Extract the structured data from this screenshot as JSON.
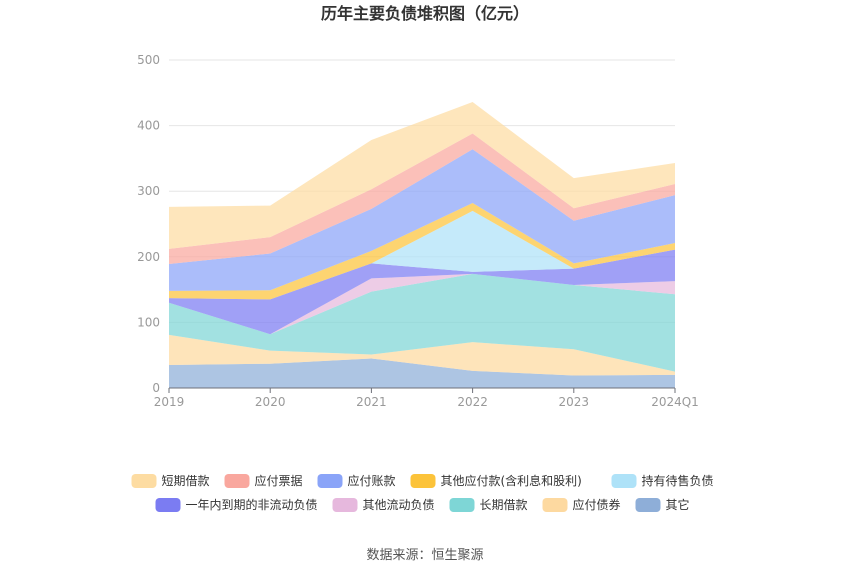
{
  "chart_data": {
    "type": "area",
    "stacked": true,
    "title": "历年主要负债堆积图（亿元）",
    "categories": [
      "2019",
      "2020",
      "2021",
      "2022",
      "2023",
      "2024Q1"
    ],
    "ylim": [
      0,
      500
    ],
    "yticks": [
      "0",
      "100",
      "200",
      "300",
      "400",
      "500"
    ],
    "grid": true,
    "legend_position": "bottom",
    "series": [
      {
        "name": "其它",
        "color": "#8eaed8",
        "values": [
          35,
          37,
          45,
          26,
          19,
          20
        ]
      },
      {
        "name": "应付债券",
        "color": "#fdd9a0",
        "values": [
          46,
          20,
          6,
          44,
          40,
          5
        ]
      },
      {
        "name": "长期借款",
        "color": "#7ed6d6",
        "values": [
          49,
          25,
          96,
          104,
          98,
          118
        ]
      },
      {
        "name": "其他流动负债",
        "color": "#e6b8dd",
        "values": [
          0,
          0,
          20,
          0,
          0,
          20
        ]
      },
      {
        "name": "一年内到期的非流动负债",
        "color": "#7b7cf2",
        "values": [
          7,
          53,
          23,
          3,
          25,
          48
        ]
      },
      {
        "name": "持有待售负债",
        "color": "#aee2f8",
        "values": [
          0,
          0,
          0,
          93,
          0,
          0
        ]
      },
      {
        "name": "其他应付款(含利息和股利)",
        "color": "#fcc33a",
        "values": [
          11,
          14,
          19,
          12,
          8,
          10
        ]
      },
      {
        "name": "应付账款",
        "color": "#8aa4f8",
        "values": [
          41,
          56,
          64,
          82,
          65,
          73
        ]
      },
      {
        "name": "应付票据",
        "color": "#f9a79e",
        "values": [
          23,
          25,
          30,
          24,
          19,
          17
        ]
      },
      {
        "name": "短期借款",
        "color": "#fddca2",
        "values": [
          64,
          48,
          75,
          48,
          46,
          32
        ]
      }
    ],
    "legend_order": [
      "短期借款",
      "应付票据",
      "应付账款",
      "其他应付款(含利息和股利)",
      "持有待售负债",
      "一年内到期的非流动负债",
      "其他流动负债",
      "长期借款",
      "应付债券",
      "其它"
    ]
  },
  "source_text": "数据来源：恒生聚源"
}
